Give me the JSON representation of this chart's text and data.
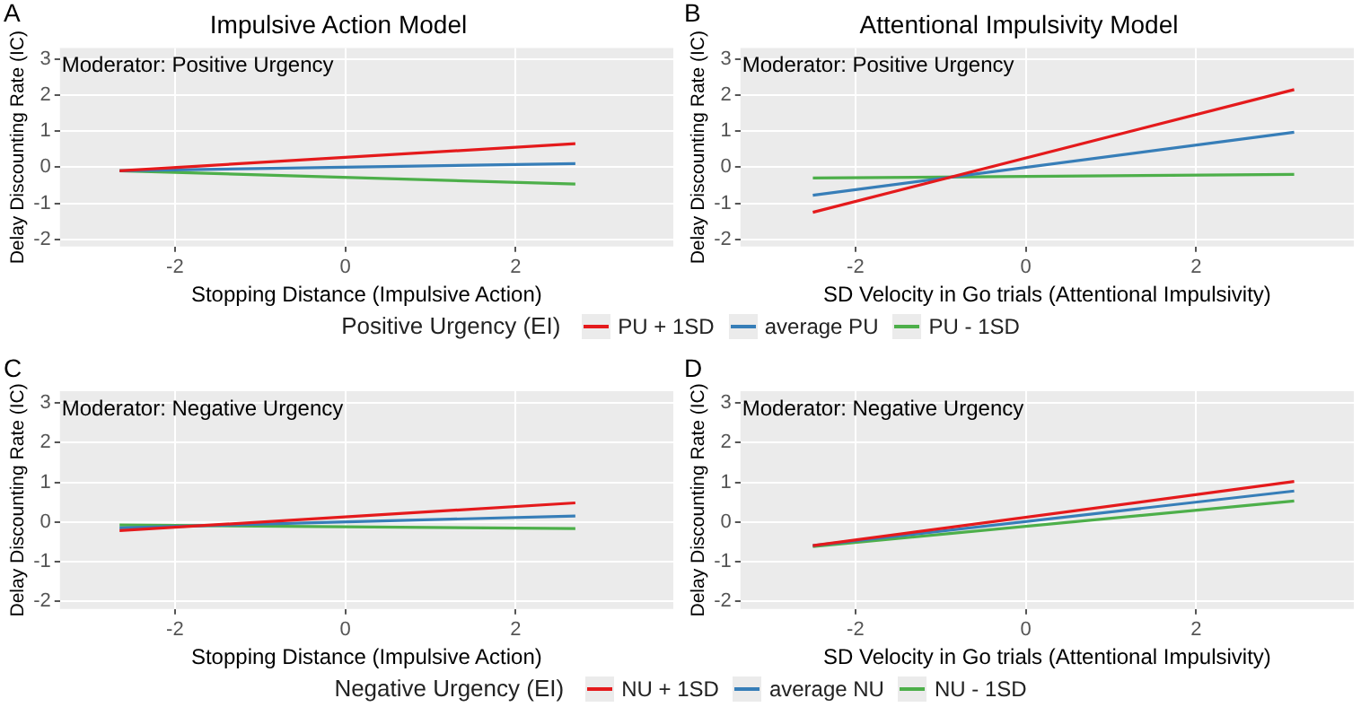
{
  "chart_data": [
    {
      "type": "line",
      "title": "Impulsive Action Model",
      "xlabel": "Stopping Distance (Impulsive Action)",
      "ylabel": "Delay Discounting Rate (IC)",
      "legend_title": "Positive Urgency (EI)",
      "legend": "bottom",
      "grid": true,
      "marker": "none",
      "annotations": [
        "A",
        "Moderator: Positive Urgency"
      ],
      "x": [
        -2.65,
        2.7
      ],
      "xlim": [
        -3.35,
        3.85
      ],
      "xticks": [
        -2,
        0,
        2
      ],
      "ylim": [
        -2.2,
        3.3
      ],
      "yticks": [
        -2,
        -1,
        0,
        1,
        2,
        3
      ],
      "series": [
        {
          "name": "PU + 1SD",
          "color": "#e41a1c",
          "values": [
            -0.1,
            0.65
          ]
        },
        {
          "name": "average PU",
          "color": "#377eb8",
          "values": [
            -0.1,
            0.1
          ]
        },
        {
          "name": "PU - 1SD",
          "color": "#4daf4a",
          "values": [
            -0.1,
            -0.47
          ]
        }
      ]
    },
    {
      "type": "line",
      "title": "Attentional Impulsivity Model",
      "xlabel": "SD Velocity in Go trials (Attentional Impulsivity)",
      "ylabel": "Delay Discounting Rate (IC)",
      "grid": true,
      "marker": "none",
      "annotations": [
        "B",
        "Moderator: Positive Urgency"
      ],
      "x": [
        -2.5,
        3.15
      ],
      "xlim": [
        -3.35,
        3.85
      ],
      "xticks": [
        -2,
        0,
        2
      ],
      "ylim": [
        -2.2,
        3.3
      ],
      "yticks": [
        -2,
        -1,
        0,
        1,
        2,
        3
      ],
      "series": [
        {
          "color": "#e41a1c",
          "values": [
            -1.25,
            2.15
          ]
        },
        {
          "color": "#377eb8",
          "values": [
            -0.78,
            0.97
          ]
        },
        {
          "color": "#4daf4a",
          "values": [
            -0.3,
            -0.2
          ]
        }
      ]
    },
    {
      "type": "line",
      "xlabel": "Stopping Distance (Impulsive Action)",
      "ylabel": "Delay Discounting Rate (IC)",
      "legend_title": "Negative Urgency (EI)",
      "legend": "bottom",
      "grid": true,
      "marker": "none",
      "annotations": [
        "C",
        "Moderator: Negative Urgency"
      ],
      "x": [
        -2.65,
        2.7
      ],
      "xlim": [
        -3.35,
        3.85
      ],
      "xticks": [
        -2,
        0,
        2
      ],
      "ylim": [
        -2.2,
        3.3
      ],
      "yticks": [
        -2,
        -1,
        0,
        1,
        2,
        3
      ],
      "series": [
        {
          "name": "NU + 1SD",
          "color": "#e41a1c",
          "values": [
            -0.22,
            0.48
          ]
        },
        {
          "name": "average NU",
          "color": "#377eb8",
          "values": [
            -0.15,
            0.15
          ]
        },
        {
          "name": "NU - 1SD",
          "color": "#4daf4a",
          "values": [
            -0.08,
            -0.17
          ]
        }
      ]
    },
    {
      "type": "line",
      "xlabel": "SD Velocity in Go trials (Attentional Impulsivity)",
      "ylabel": "Delay Discounting Rate (IC)",
      "grid": true,
      "marker": "none",
      "annotations": [
        "D",
        "Moderator: Negative Urgency"
      ],
      "x": [
        -2.5,
        3.15
      ],
      "xlim": [
        -3.35,
        3.85
      ],
      "xticks": [
        -2,
        0,
        2
      ],
      "ylim": [
        -2.2,
        3.3
      ],
      "yticks": [
        -2,
        -1,
        0,
        1,
        2,
        3
      ],
      "series": [
        {
          "color": "#e41a1c",
          "values": [
            -0.6,
            1.02
          ]
        },
        {
          "color": "#377eb8",
          "values": [
            -0.6,
            0.78
          ]
        },
        {
          "color": "#4daf4a",
          "values": [
            -0.62,
            0.53
          ]
        }
      ]
    }
  ]
}
